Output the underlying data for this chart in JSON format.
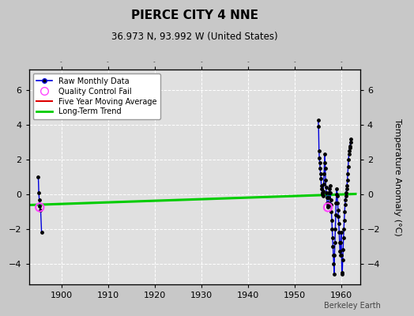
{
  "title": "PIERCE CITY 4 NNE",
  "subtitle": "36.973 N, 93.992 W (United States)",
  "ylabel": "Temperature Anomaly (°C)",
  "watermark": "Berkeley Earth",
  "xlim": [
    1893,
    1964
  ],
  "ylim": [
    -5.2,
    7.2
  ],
  "yticks": [
    -4,
    -2,
    0,
    2,
    4,
    6
  ],
  "xticks": [
    1900,
    1910,
    1920,
    1930,
    1940,
    1950,
    1960
  ],
  "fig_bg_color": "#c8c8c8",
  "plot_bg_color": "#e0e0e0",
  "grid_color": "#ffffff",
  "raw_data_1895": [
    [
      1895.0,
      1.0
    ],
    [
      1895.1,
      0.1
    ],
    [
      1895.2,
      -0.3
    ],
    [
      1895.3,
      -0.7
    ],
    [
      1895.5,
      -0.9
    ],
    [
      1895.7,
      -2.2
    ]
  ],
  "qc_fail_1895": [
    1895.3,
    -0.75
  ],
  "raw_data_late": [
    [
      1955.0,
      4.3
    ],
    [
      1955.08,
      3.9
    ],
    [
      1955.17,
      2.5
    ],
    [
      1955.25,
      2.1
    ],
    [
      1955.33,
      1.8
    ],
    [
      1955.42,
      1.5
    ],
    [
      1955.5,
      1.2
    ],
    [
      1955.58,
      0.9
    ],
    [
      1955.67,
      0.5
    ],
    [
      1955.75,
      0.3
    ],
    [
      1955.83,
      0.1
    ],
    [
      1955.92,
      0.0
    ],
    [
      1956.0,
      -0.1
    ],
    [
      1956.08,
      0.2
    ],
    [
      1956.17,
      0.6
    ],
    [
      1956.25,
      1.2
    ],
    [
      1956.33,
      1.8
    ],
    [
      1956.42,
      2.3
    ],
    [
      1956.5,
      1.5
    ],
    [
      1956.58,
      0.8
    ],
    [
      1956.67,
      0.4
    ],
    [
      1956.75,
      0.1
    ],
    [
      1956.83,
      -0.2
    ],
    [
      1956.92,
      -0.5
    ],
    [
      1957.0,
      -0.7
    ],
    [
      1957.08,
      -0.75
    ],
    [
      1957.17,
      -0.5
    ],
    [
      1957.25,
      -0.2
    ],
    [
      1957.33,
      0.1
    ],
    [
      1957.42,
      0.3
    ],
    [
      1957.5,
      0.5
    ],
    [
      1957.58,
      0.1
    ],
    [
      1957.67,
      -0.3
    ],
    [
      1957.75,
      -0.6
    ],
    [
      1957.83,
      -1.0
    ],
    [
      1957.92,
      -1.5
    ],
    [
      1958.0,
      -2.0
    ],
    [
      1958.08,
      -2.5
    ],
    [
      1958.17,
      -3.0
    ],
    [
      1958.25,
      -3.5
    ],
    [
      1958.33,
      -4.0
    ],
    [
      1958.42,
      -4.6
    ],
    [
      1958.5,
      -3.5
    ],
    [
      1958.58,
      -2.8
    ],
    [
      1958.67,
      -2.0
    ],
    [
      1958.75,
      -1.2
    ],
    [
      1958.83,
      -0.5
    ],
    [
      1958.92,
      0.0
    ],
    [
      1959.0,
      0.3
    ],
    [
      1959.08,
      -0.1
    ],
    [
      1959.17,
      -0.5
    ],
    [
      1959.25,
      -0.9
    ],
    [
      1959.33,
      -1.3
    ],
    [
      1959.42,
      -1.7
    ],
    [
      1959.5,
      -2.2
    ],
    [
      1959.58,
      -2.8
    ],
    [
      1959.67,
      -3.3
    ],
    [
      1959.75,
      -3.5
    ],
    [
      1959.83,
      -2.8
    ],
    [
      1959.92,
      -2.2
    ],
    [
      1960.0,
      -3.5
    ],
    [
      1960.08,
      -4.6
    ],
    [
      1960.17,
      -4.5
    ],
    [
      1960.25,
      -3.8
    ],
    [
      1960.33,
      -3.2
    ],
    [
      1960.42,
      -2.5
    ],
    [
      1960.5,
      -2.0
    ],
    [
      1960.58,
      -1.5
    ],
    [
      1960.67,
      -1.0
    ],
    [
      1960.75,
      -0.6
    ],
    [
      1960.83,
      -0.3
    ],
    [
      1960.92,
      -0.1
    ],
    [
      1961.0,
      0.1
    ],
    [
      1961.08,
      0.3
    ],
    [
      1961.17,
      0.5
    ],
    [
      1961.25,
      0.8
    ],
    [
      1961.33,
      1.2
    ],
    [
      1961.42,
      1.6
    ],
    [
      1961.5,
      2.0
    ],
    [
      1961.58,
      2.3
    ],
    [
      1961.67,
      2.5
    ],
    [
      1961.75,
      2.7
    ],
    [
      1961.83,
      2.8
    ],
    [
      1961.92,
      3.0
    ],
    [
      1962.0,
      3.2
    ]
  ],
  "qc_fail_late": [
    1957.08,
    -0.75
  ],
  "green_trend_x": [
    1893,
    1963
  ],
  "green_trend_y": [
    -0.62,
    0.02
  ],
  "raw_line_color": "#0000dd",
  "raw_dot_color": "#000000",
  "qc_color": "#ff44ff",
  "ma_color": "#dd0000",
  "trend_color": "#00cc00",
  "legend_bg": "#ffffff"
}
